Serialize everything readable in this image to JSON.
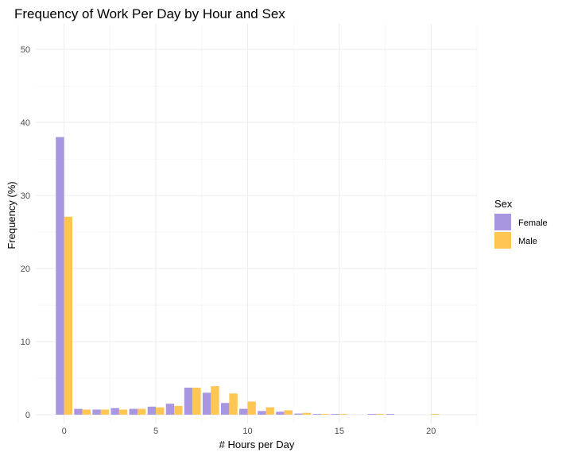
{
  "chart_data": {
    "type": "bar",
    "title": "Frequency of Work Per Day by Hour and Sex",
    "xlabel": "# Hours per Day",
    "ylabel": "Frequency (%)",
    "x": [
      0,
      1,
      2,
      3,
      4,
      5,
      6,
      7,
      8,
      9,
      10,
      11,
      12,
      13,
      14,
      15,
      16,
      17,
      18,
      19,
      20
    ],
    "xlim": [
      -1.5,
      22.5
    ],
    "ylim": [
      -1.2,
      53.5
    ],
    "x_ticks": [
      0,
      5,
      10,
      15,
      20
    ],
    "y_ticks": [
      0,
      10,
      20,
      30,
      40,
      50
    ],
    "grid": true,
    "legend": {
      "title": "Sex",
      "position": "right"
    },
    "series": [
      {
        "name": "Female",
        "color": "#a897e0",
        "values": [
          38.0,
          0.8,
          0.7,
          0.9,
          0.8,
          1.1,
          1.5,
          3.7,
          3.0,
          1.6,
          0.8,
          0.5,
          0.4,
          0.15,
          0.1,
          0.1,
          0.0,
          0.1,
          0.1,
          0.0,
          0.0
        ]
      },
      {
        "name": "Male",
        "color": "#ffc653",
        "values": [
          27.1,
          0.7,
          0.7,
          0.7,
          0.8,
          1.0,
          1.2,
          3.7,
          3.9,
          2.9,
          1.8,
          1.0,
          0.6,
          0.25,
          0.1,
          0.1,
          0.0,
          0.1,
          0.0,
          0.0,
          0.1
        ]
      }
    ]
  }
}
